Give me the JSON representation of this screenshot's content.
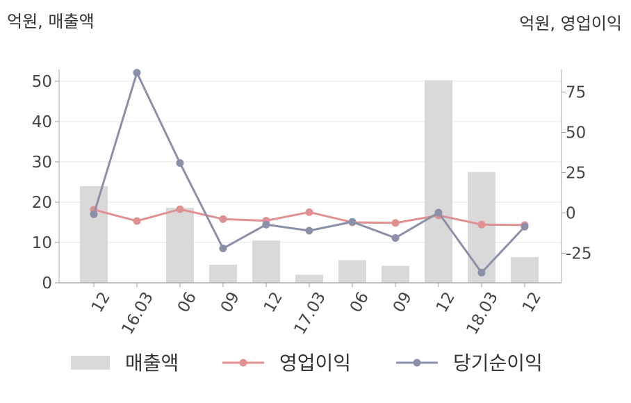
{
  "chart_data": {
    "type": "bar+line",
    "left_axis_unit": "억원, 매출액",
    "right_axis_unit": "억원, 영업이익",
    "categories": [
      "12",
      "16.03",
      "06",
      "09",
      "12",
      "17.03",
      "06",
      "09",
      "12",
      "18.03",
      "12"
    ],
    "left_ylim": [
      0,
      50
    ],
    "left_yticks": [
      0,
      10,
      20,
      30,
      40,
      50
    ],
    "right_ylim": [
      -43,
      85
    ],
    "right_yticks": [
      -25,
      0,
      25,
      50,
      75
    ],
    "series": [
      {
        "name": "매출액",
        "kind": "bar",
        "axis": "left",
        "color": "#d9d9d9",
        "values": [
          24,
          0,
          18.6,
          4.5,
          10.5,
          2,
          5.6,
          4.2,
          50.3,
          27.5,
          6.4
        ]
      },
      {
        "name": "영업이익",
        "kind": "line",
        "axis": "right",
        "color": "#e09090",
        "values": [
          2,
          -5,
          2.3,
          -3.8,
          -4.8,
          0.5,
          -5.8,
          -6.2,
          -1.5,
          -7.2,
          -7.5
        ]
      },
      {
        "name": "당기순이익",
        "kind": "line",
        "axis": "right",
        "color": "#8a90a8",
        "values": [
          -0.8,
          87,
          31,
          -22,
          -7.2,
          -11,
          -5.5,
          -15.5,
          0.2,
          -37,
          -8.5
        ]
      }
    ],
    "grid": true,
    "legend_position": "bottom"
  }
}
